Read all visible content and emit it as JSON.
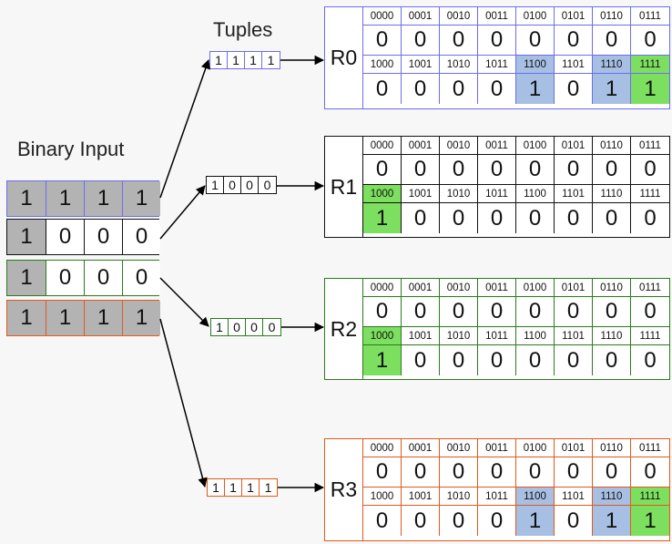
{
  "labels": {
    "tuples_title": "Tuples",
    "binary_input_title": "Binary Input"
  },
  "colors": {
    "row0": "#6c6cf0",
    "row1": "#111111",
    "row2": "#2b7a1f",
    "row3": "#e05a1a",
    "highlight_blue": "#a7bfe3",
    "highlight_green": "#7ddf5f",
    "input_gray": "#b3b3b3"
  },
  "binary_input": [
    {
      "cells": [
        "1",
        "1",
        "1",
        "1"
      ],
      "shaded": [
        true,
        true,
        true,
        true
      ]
    },
    {
      "cells": [
        "1",
        "0",
        "0",
        "0"
      ],
      "shaded": [
        true,
        false,
        false,
        false
      ]
    },
    {
      "cells": [
        "1",
        "0",
        "0",
        "0"
      ],
      "shaded": [
        true,
        false,
        false,
        false
      ]
    },
    {
      "cells": [
        "1",
        "1",
        "1",
        "1"
      ],
      "shaded": [
        true,
        true,
        true,
        true
      ]
    }
  ],
  "tuples": [
    {
      "bits": [
        "1",
        "1",
        "1",
        "1"
      ]
    },
    {
      "bits": [
        "1",
        "0",
        "0",
        "0"
      ]
    },
    {
      "bits": [
        "1",
        "0",
        "0",
        "0"
      ]
    },
    {
      "bits": [
        "1",
        "1",
        "1",
        "1"
      ]
    }
  ],
  "rams": [
    {
      "label": "R0",
      "addresses_top": [
        "0000",
        "0001",
        "0010",
        "0011",
        "0100",
        "0101",
        "0110",
        "0111"
      ],
      "values_top": [
        "0",
        "0",
        "0",
        "0",
        "0",
        "0",
        "0",
        "0"
      ],
      "addresses_bottom": [
        "1000",
        "1001",
        "1010",
        "1011",
        "1100",
        "1101",
        "1110",
        "1111"
      ],
      "values_bottom": [
        "0",
        "0",
        "0",
        "0",
        "1",
        "0",
        "1",
        "1"
      ],
      "highlight_top": [
        "",
        "",
        "",
        "",
        "",
        "",
        "",
        ""
      ],
      "highlight_bottom": [
        "",
        "",
        "",
        "",
        "blue",
        "",
        "blue",
        "green"
      ]
    },
    {
      "label": "R1",
      "addresses_top": [
        "0000",
        "0001",
        "0010",
        "0011",
        "0100",
        "0101",
        "0110",
        "0111"
      ],
      "values_top": [
        "0",
        "0",
        "0",
        "0",
        "0",
        "0",
        "0",
        "0"
      ],
      "addresses_bottom": [
        "1000",
        "1001",
        "1010",
        "1011",
        "1100",
        "1101",
        "1110",
        "1111"
      ],
      "values_bottom": [
        "1",
        "0",
        "0",
        "0",
        "0",
        "0",
        "0",
        "0"
      ],
      "highlight_top": [
        "",
        "",
        "",
        "",
        "",
        "",
        "",
        ""
      ],
      "highlight_bottom": [
        "green",
        "",
        "",
        "",
        "",
        "",
        "",
        ""
      ]
    },
    {
      "label": "R2",
      "addresses_top": [
        "0000",
        "0001",
        "0010",
        "0011",
        "0100",
        "0101",
        "0110",
        "0111"
      ],
      "values_top": [
        "0",
        "0",
        "0",
        "0",
        "0",
        "0",
        "0",
        "0"
      ],
      "addresses_bottom": [
        "1000",
        "1001",
        "1010",
        "1011",
        "1100",
        "1101",
        "1110",
        "1111"
      ],
      "values_bottom": [
        "1",
        "0",
        "0",
        "0",
        "0",
        "0",
        "0",
        "0"
      ],
      "highlight_top": [
        "",
        "",
        "",
        "",
        "",
        "",
        "",
        ""
      ],
      "highlight_bottom": [
        "green",
        "",
        "",
        "",
        "",
        "",
        "",
        ""
      ]
    },
    {
      "label": "R3",
      "addresses_top": [
        "0000",
        "0001",
        "0010",
        "0011",
        "0100",
        "0101",
        "0110",
        "0111"
      ],
      "values_top": [
        "0",
        "0",
        "0",
        "0",
        "0",
        "0",
        "0",
        "0"
      ],
      "addresses_bottom": [
        "1000",
        "1001",
        "1010",
        "1011",
        "1100",
        "1101",
        "1110",
        "1111"
      ],
      "values_bottom": [
        "0",
        "0",
        "0",
        "0",
        "1",
        "0",
        "1",
        "1"
      ],
      "highlight_top": [
        "",
        "",
        "",
        "",
        "",
        "",
        "",
        ""
      ],
      "highlight_bottom": [
        "",
        "",
        "",
        "",
        "blue",
        "",
        "blue",
        "green"
      ]
    }
  ]
}
